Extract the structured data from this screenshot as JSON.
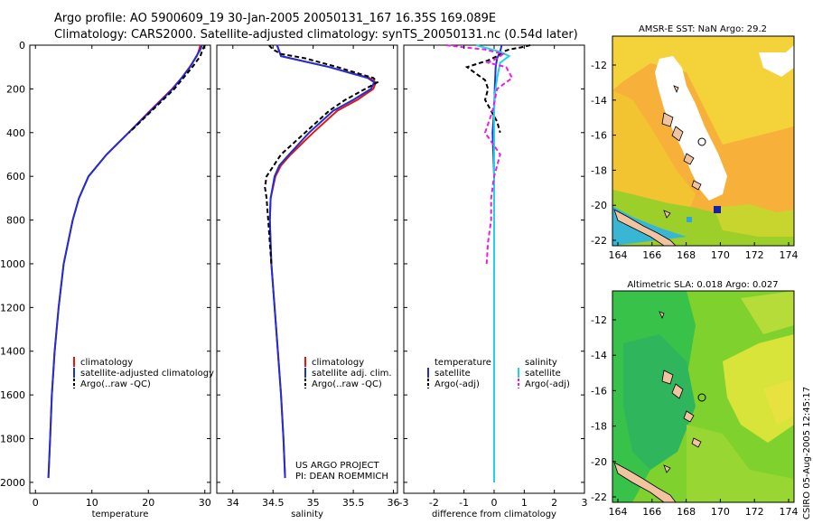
{
  "header": {
    "line1": "Argo profile: AO 5900609_19 30-Jan-2005 20050131_167 16.35S 169.089E",
    "line2": "Climatology: CARS2000. Satellite-adjusted climatology: synTS_20050131.nc (0.54d later)"
  },
  "colors": {
    "climatology": "#e8140e",
    "satellite": "#1f2fd6",
    "argo": "#000000",
    "salinity_sat": "#22d3e6",
    "salinity_argo": "#e81ee8"
  },
  "credits": {
    "line1": "US ARGO PROJECT",
    "line2": "PI: DEAN ROEMMICH"
  },
  "timestamp": "CSIRO 05-Aug-2005 12:45:17",
  "chart_data": [
    {
      "type": "line",
      "id": "temperature",
      "xlabel": "temperature",
      "ylabel": "",
      "xlim": [
        -1,
        31
      ],
      "ylim": [
        2050,
        0
      ],
      "xticks": [
        "0",
        "10",
        "20",
        "30"
      ],
      "yticks": [
        "0",
        "200",
        "400",
        "600",
        "800",
        "1000",
        "1200",
        "1400",
        "1600",
        "1800",
        "2000"
      ],
      "series": [
        {
          "name": "climatology",
          "depth": [
            0,
            20,
            50,
            100,
            150,
            200,
            300,
            400,
            500,
            600,
            700,
            800,
            1000,
            1200,
            1400,
            1600,
            1800,
            1980
          ],
          "values": [
            29.2,
            29.0,
            28.6,
            27.3,
            25.9,
            24.2,
            20.3,
            16.5,
            12.6,
            9.4,
            7.7,
            6.6,
            5.0,
            4.1,
            3.4,
            2.9,
            2.6,
            2.3
          ]
        },
        {
          "name": "satellite-adjusted climatology",
          "depth": [
            0,
            20,
            50,
            100,
            150,
            200,
            300,
            400,
            500,
            600,
            700,
            800,
            1000,
            1200,
            1400,
            1600,
            1800,
            1980
          ],
          "values": [
            29.5,
            29.2,
            28.5,
            27.4,
            25.9,
            24.3,
            20.4,
            16.5,
            12.6,
            9.4,
            7.7,
            6.6,
            5.0,
            4.1,
            3.4,
            2.9,
            2.6,
            2.3
          ]
        },
        {
          "name": "Argo(..raw -QC)",
          "depth": [
            0,
            20,
            50,
            100,
            150,
            200,
            300,
            400
          ],
          "values": [
            30.0,
            29.6,
            29.2,
            27.8,
            26.2,
            24.6,
            20.6,
            16.6
          ]
        }
      ],
      "legend": [
        "climatology",
        "satellite-adjusted climatology",
        "Argo(..raw -QC)"
      ]
    },
    {
      "type": "line",
      "id": "salinity",
      "xlabel": "salinity",
      "xlim": [
        33.8,
        36.05
      ],
      "ylim": [
        2050,
        0
      ],
      "xticks": [
        "34",
        "34.5",
        "35",
        "35.5",
        "36"
      ],
      "series": [
        {
          "name": "climatology",
          "depth": [
            0,
            50,
            100,
            150,
            170,
            200,
            250,
            300,
            400,
            500,
            550,
            600,
            700,
            800,
            1000,
            1200,
            1400,
            1600,
            1800,
            1980
          ],
          "values": [
            34.55,
            34.6,
            35.2,
            35.7,
            35.78,
            35.75,
            35.55,
            35.3,
            35.0,
            34.72,
            34.6,
            34.53,
            34.47,
            34.46,
            34.48,
            34.52,
            34.56,
            34.6,
            34.63,
            34.65
          ]
        },
        {
          "name": "satellite adj. clim.",
          "depth": [
            0,
            50,
            100,
            150,
            170,
            200,
            250,
            300,
            400,
            500,
            550,
            600,
            700,
            800,
            1000,
            1200,
            1400,
            1600,
            1800,
            1980
          ],
          "values": [
            34.55,
            34.6,
            35.2,
            35.68,
            35.76,
            35.72,
            35.5,
            35.25,
            34.95,
            34.7,
            34.58,
            34.52,
            34.47,
            34.46,
            34.48,
            34.52,
            34.56,
            34.6,
            34.63,
            34.65
          ]
        },
        {
          "name": "Argo(..raw -QC)",
          "depth": [
            0,
            20,
            40,
            60,
            100,
            150,
            170,
            200,
            250,
            300,
            400,
            500,
            600,
            650,
            700,
            800,
            1000
          ],
          "values": [
            34.45,
            34.5,
            34.6,
            34.9,
            35.3,
            35.75,
            35.8,
            35.65,
            35.4,
            35.2,
            34.9,
            34.6,
            34.42,
            34.4,
            34.42,
            34.44,
            34.48
          ]
        }
      ],
      "legend": [
        "climatology",
        "satellite adj. clim.",
        "Argo(..raw -QC)"
      ]
    },
    {
      "type": "line",
      "id": "difference",
      "xlabel": "difference from climatology",
      "xlim": [
        -3,
        3
      ],
      "ylim": [
        2050,
        0
      ],
      "xticks": [
        "-3",
        "-2",
        "-1",
        "0",
        "1",
        "2",
        "3"
      ],
      "series": [
        {
          "name": "temperature satellite",
          "depth": [
            0,
            30,
            60,
            100,
            200,
            300,
            400,
            600,
            1000,
            1600,
            2000
          ],
          "values": [
            0.25,
            0.2,
            0.1,
            0.05,
            0.02,
            0.0,
            -0.05,
            0.0,
            0.0,
            0.0,
            0.0
          ]
        },
        {
          "name": "temperature Argo(-adj)",
          "depth": [
            0,
            10,
            20,
            30,
            50,
            70,
            100,
            130,
            160,
            200,
            250,
            300,
            350,
            400
          ],
          "values": [
            1.2,
            0.9,
            0.5,
            0.3,
            0.1,
            -0.2,
            -0.9,
            -0.6,
            -0.3,
            -0.2,
            -0.3,
            -0.1,
            0.1,
            0.2
          ]
        },
        {
          "name": "salinity satellite",
          "depth": [
            0,
            30,
            50,
            80,
            150,
            250,
            400,
            600,
            800,
            1200,
            1600,
            2000
          ],
          "values": [
            -0.6,
            0.2,
            0.5,
            0.2,
            0.1,
            0.0,
            0.0,
            0.0,
            0.0,
            0.0,
            0.0,
            0.0
          ]
        },
        {
          "name": "salinity Argo(-adj)",
          "depth": [
            0,
            10,
            20,
            40,
            60,
            80,
            100,
            150,
            200,
            300,
            400,
            500,
            600,
            700,
            800,
            900,
            1000
          ],
          "values": [
            -1.6,
            -1.0,
            -0.3,
            0.3,
            0.1,
            -0.2,
            0.4,
            0.6,
            0.1,
            -0.05,
            -0.3,
            0.2,
            0.0,
            -0.1,
            -0.1,
            -0.2,
            -0.25
          ]
        }
      ],
      "legend_left_title": "temperature",
      "legend_left": [
        "satellite",
        "Argo(-adj)"
      ],
      "legend_right_title": "salinity",
      "legend_right": [
        "satellite",
        "Argo(-adj)"
      ]
    },
    {
      "type": "heatmap",
      "id": "sst-map",
      "title": "AMSR-E SST: NaN Argo: 29.2",
      "xticks": [
        "164",
        "166",
        "168",
        "170",
        "172",
        "174"
      ],
      "yticks": [
        "-12",
        "-14",
        "-16",
        "-18",
        "-20",
        "-22"
      ]
    },
    {
      "type": "heatmap",
      "id": "sla-map",
      "title": "Altimetric SLA: 0.018 Argo: 0.027",
      "xticks": [
        "164",
        "166",
        "168",
        "170",
        "172",
        "174"
      ],
      "yticks": [
        "-12",
        "-14",
        "-16",
        "-18",
        "-20",
        "-22"
      ]
    }
  ]
}
